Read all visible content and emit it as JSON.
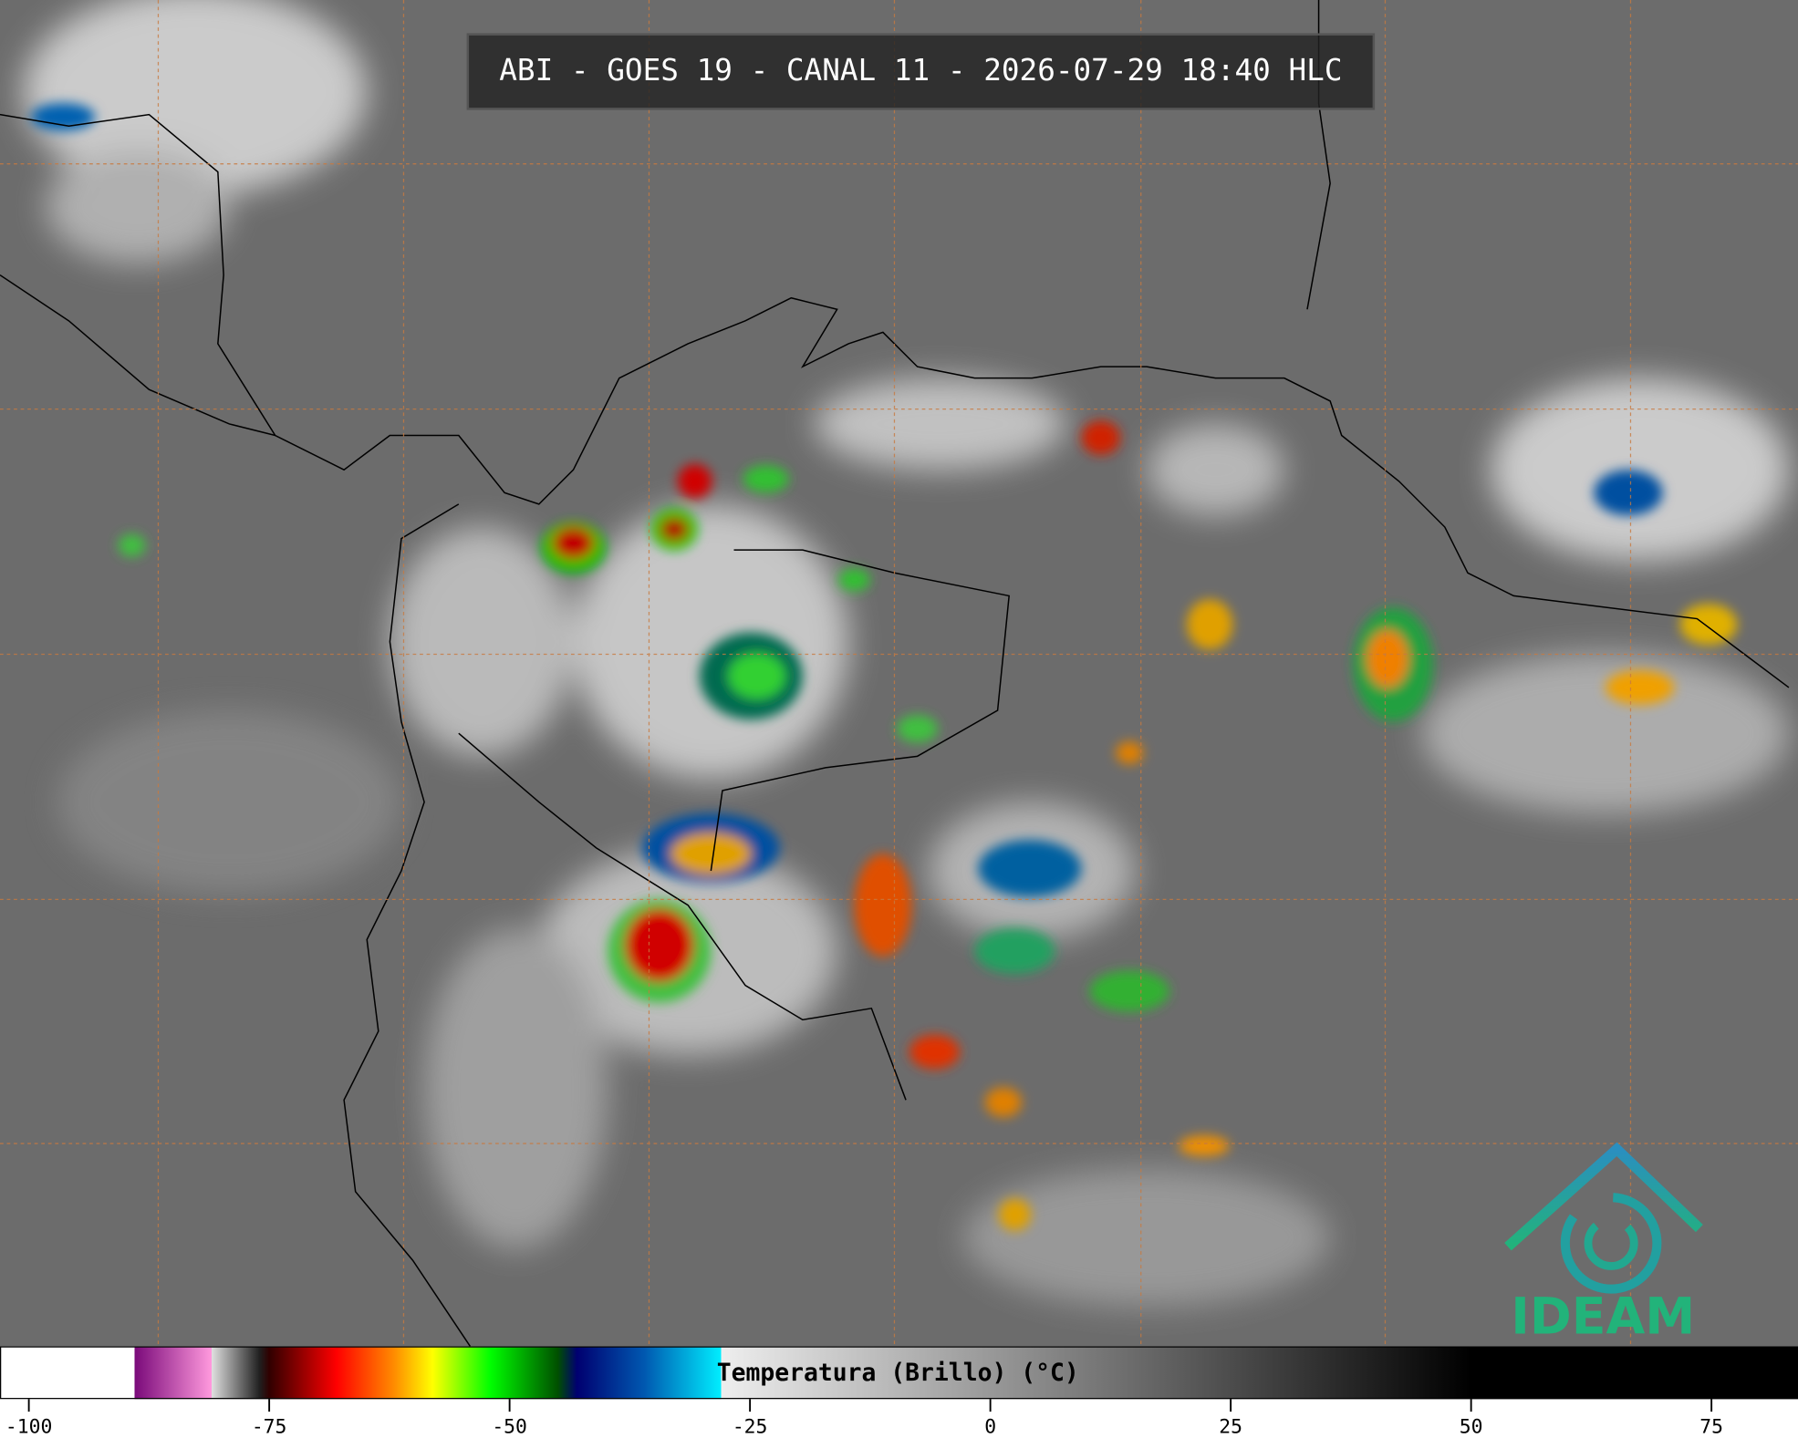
{
  "header": {
    "title": "ABI - GOES 19 - CANAL 11 - 2026-07-29 18:40 HLC"
  },
  "colorbar": {
    "label": "Temperatura (Brillo) (°C)",
    "lim": [
      -103,
      84
    ],
    "ticks": [
      -100,
      -75,
      -50,
      -25,
      0,
      25,
      50,
      75
    ],
    "stops": [
      {
        "value": -103,
        "color": "#ffffff"
      },
      {
        "value": -89,
        "color": "#ffffff"
      },
      {
        "value": -89,
        "color": "#7a0a7a"
      },
      {
        "value": -81,
        "color": "#ff99dd"
      },
      {
        "value": -81,
        "color": "#e0e0e0"
      },
      {
        "value": -76,
        "color": "#202020"
      },
      {
        "value": -75,
        "color": "#300000"
      },
      {
        "value": -68,
        "color": "#ff0000"
      },
      {
        "value": -62,
        "color": "#ff8c00"
      },
      {
        "value": -58,
        "color": "#ffff00"
      },
      {
        "value": -52,
        "color": "#00ff00"
      },
      {
        "value": -45,
        "color": "#005000"
      },
      {
        "value": -43,
        "color": "#000070"
      },
      {
        "value": -36,
        "color": "#0058b0"
      },
      {
        "value": -28,
        "color": "#00eeff"
      },
      {
        "value": -28,
        "color": "#eeeeee"
      },
      {
        "value": 50,
        "color": "#000000"
      },
      {
        "value": 84,
        "color": "#000000"
      }
    ]
  },
  "logo": {
    "text": "IDEAM"
  }
}
